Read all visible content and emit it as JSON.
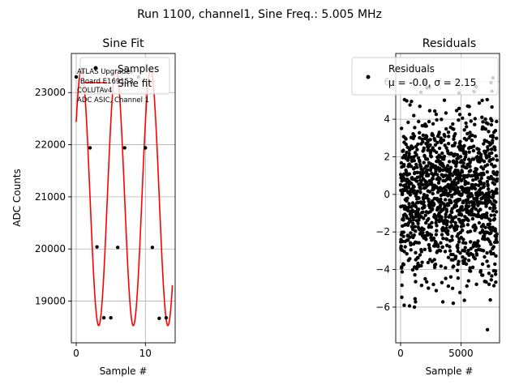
{
  "figure_title": "Run 1100, channel1, Sine Freq.: 5.005 MHz",
  "colors": {
    "fit_line": "#ff0000",
    "points": "#000000",
    "grid": "#b0b0b0",
    "axes": "#000000"
  },
  "chart_data": [
    {
      "type": "line",
      "title": "Sine Fit",
      "xlabel": "Sample #",
      "ylabel": "ADC Counts",
      "xlim": [
        -0.7,
        14.3
      ],
      "ylim": [
        18200,
        23750
      ],
      "xticks": [
        0,
        10
      ],
      "yticks": [
        19000,
        20000,
        21000,
        22000,
        23000
      ],
      "grid": true,
      "legend_placement": "upper-right",
      "legend": [
        "Samples",
        "Sine fit"
      ],
      "annotation": [
        "ATLAS Upgrade",
        "Board E169153",
        "COLUTAv4",
        "ADC ASIC, Channel 1"
      ],
      "samples": {
        "name": "Samples",
        "x": [
          0,
          1,
          2,
          3,
          4,
          5,
          6,
          7,
          8,
          9,
          10,
          11,
          12,
          13
        ],
        "y": [
          23300,
          23400,
          21940,
          20040,
          18680,
          18680,
          20030,
          21940,
          23400,
          23300,
          21940,
          20030,
          18670,
          18680
        ]
      },
      "fit": {
        "name": "Sine fit",
        "amplitude": 2460,
        "offset": 20990,
        "period": 5.0,
        "peak_at": 0.75,
        "x_range": [
          0,
          13.9
        ]
      }
    },
    {
      "type": "scatter",
      "title": "Residuals",
      "xlabel": "Sample #",
      "ylim": [
        -7.9,
        7.5
      ],
      "xlim": [
        -400,
        8200
      ],
      "xticks": [
        0,
        5000
      ],
      "yticks": [
        -6,
        -4,
        -2,
        0,
        2,
        4,
        6
      ],
      "grid": true,
      "legend_placement": "upper-right",
      "legend": [
        "Residuals",
        "μ = -0.0, σ = 2.15"
      ],
      "residuals": {
        "name": "Residuals",
        "n_points": 8000,
        "mean": -0.0,
        "std": 2.15,
        "range": [
          -6,
          6
        ],
        "outliers": [
          {
            "x": 7200,
            "y": -7.2
          },
          {
            "x": 7650,
            "y": 6.2
          },
          {
            "x": 300,
            "y": -5.9
          },
          {
            "x": 1150,
            "y": -6.0
          }
        ]
      }
    }
  ]
}
